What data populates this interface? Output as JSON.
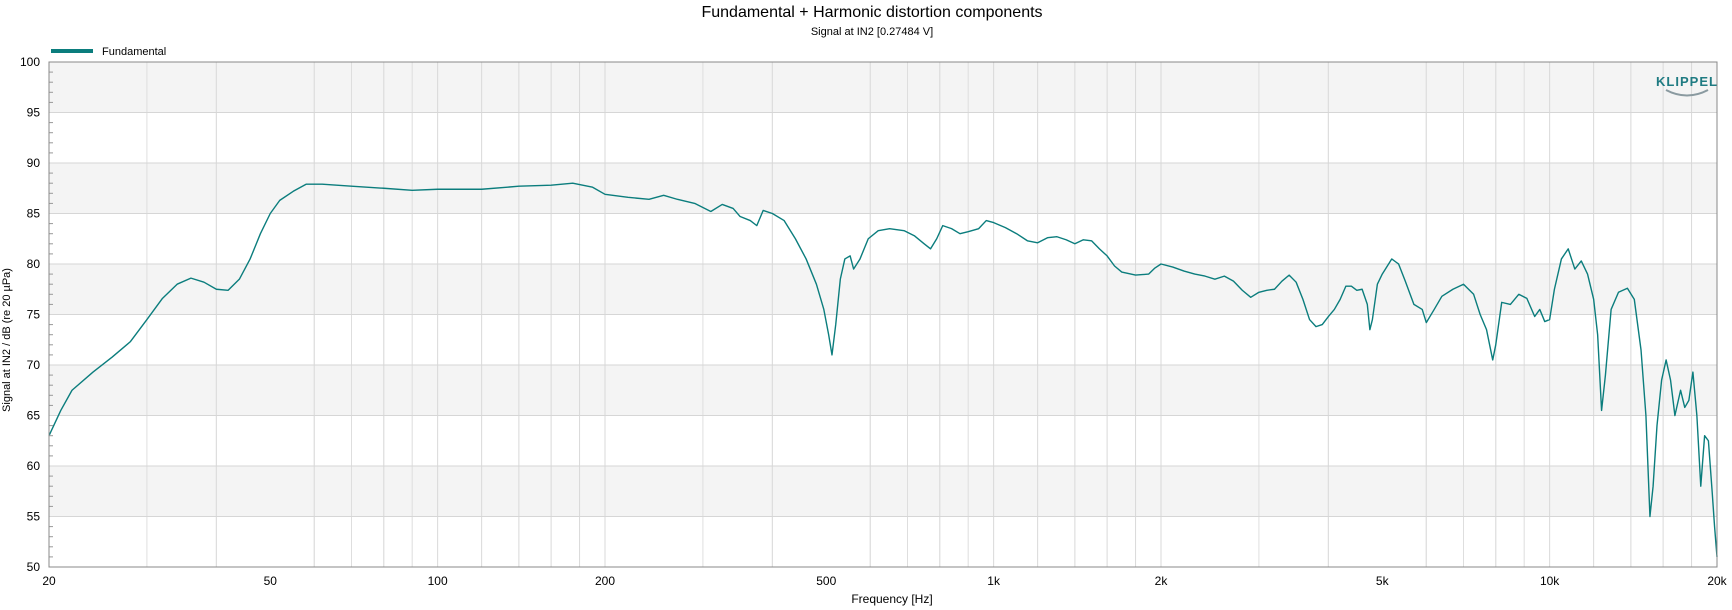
{
  "chart_data": {
    "type": "line",
    "title": "Fundamental + Harmonic distortion components",
    "subtitle": "Signal at IN2 [0.27484 V]",
    "xlabel": "Frequency [Hz]",
    "ylabel": "Signal at IN2 / dB (re 20 µPa)",
    "x_scale": "log",
    "xlim": [
      20,
      20000
    ],
    "ylim": [
      50,
      100
    ],
    "grid": true,
    "legend_position": "top-left",
    "logo_text": "KLIPPEL",
    "x_ticks": [
      {
        "value": 20,
        "label": "20"
      },
      {
        "value": 50,
        "label": "50"
      },
      {
        "value": 100,
        "label": "100"
      },
      {
        "value": 200,
        "label": "200"
      },
      {
        "value": 500,
        "label": "500"
      },
      {
        "value": 1000,
        "label": "1k"
      },
      {
        "value": 2000,
        "label": "2k"
      },
      {
        "value": 5000,
        "label": "5k"
      },
      {
        "value": 10000,
        "label": "10k"
      },
      {
        "value": 20000,
        "label": "20k"
      }
    ],
    "y_ticks": [
      {
        "value": 100,
        "label": "100"
      },
      {
        "value": 95,
        "label": "95"
      },
      {
        "value": 90,
        "label": "90"
      },
      {
        "value": 85,
        "label": "85"
      },
      {
        "value": 80,
        "label": "80"
      },
      {
        "value": 75,
        "label": "75"
      },
      {
        "value": 70,
        "label": "70"
      },
      {
        "value": 65,
        "label": "65"
      },
      {
        "value": 60,
        "label": "60"
      },
      {
        "value": 55,
        "label": "55"
      },
      {
        "value": 50,
        "label": "50"
      }
    ],
    "series": [
      {
        "name": "Fundamental",
        "color": "#0b7d7d",
        "points": [
          [
            20,
            63
          ],
          [
            21,
            65.5
          ],
          [
            22,
            67.5
          ],
          [
            24,
            69.3
          ],
          [
            26,
            70.8
          ],
          [
            28,
            72.3
          ],
          [
            30,
            74.5
          ],
          [
            32,
            76.6
          ],
          [
            34,
            78.0
          ],
          [
            36,
            78.6
          ],
          [
            38,
            78.2
          ],
          [
            40,
            77.5
          ],
          [
            42,
            77.4
          ],
          [
            44,
            78.5
          ],
          [
            46,
            80.5
          ],
          [
            48,
            83.0
          ],
          [
            50,
            85.0
          ],
          [
            52,
            86.3
          ],
          [
            55,
            87.2
          ],
          [
            58,
            87.9
          ],
          [
            62,
            87.9
          ],
          [
            70,
            87.7
          ],
          [
            80,
            87.5
          ],
          [
            90,
            87.3
          ],
          [
            100,
            87.4
          ],
          [
            120,
            87.4
          ],
          [
            140,
            87.7
          ],
          [
            160,
            87.8
          ],
          [
            175,
            88.0
          ],
          [
            190,
            87.6
          ],
          [
            200,
            86.9
          ],
          [
            220,
            86.6
          ],
          [
            240,
            86.4
          ],
          [
            255,
            86.8
          ],
          [
            270,
            86.4
          ],
          [
            290,
            86.0
          ],
          [
            310,
            85.2
          ],
          [
            325,
            85.9
          ],
          [
            340,
            85.5
          ],
          [
            350,
            84.7
          ],
          [
            365,
            84.3
          ],
          [
            375,
            83.8
          ],
          [
            385,
            85.3
          ],
          [
            400,
            85.0
          ],
          [
            420,
            84.3
          ],
          [
            440,
            82.5
          ],
          [
            460,
            80.5
          ],
          [
            480,
            78.0
          ],
          [
            495,
            75.5
          ],
          [
            505,
            73.0
          ],
          [
            512,
            71.0
          ],
          [
            520,
            74.0
          ],
          [
            530,
            78.5
          ],
          [
            540,
            80.5
          ],
          [
            552,
            80.8
          ],
          [
            560,
            79.5
          ],
          [
            575,
            80.5
          ],
          [
            595,
            82.5
          ],
          [
            620,
            83.3
          ],
          [
            650,
            83.5
          ],
          [
            690,
            83.3
          ],
          [
            720,
            82.8
          ],
          [
            750,
            82.0
          ],
          [
            770,
            81.5
          ],
          [
            790,
            82.5
          ],
          [
            810,
            83.8
          ],
          [
            840,
            83.5
          ],
          [
            870,
            83.0
          ],
          [
            900,
            83.2
          ],
          [
            940,
            83.5
          ],
          [
            970,
            84.3
          ],
          [
            1000,
            84.1
          ],
          [
            1050,
            83.6
          ],
          [
            1100,
            83.0
          ],
          [
            1150,
            82.3
          ],
          [
            1200,
            82.1
          ],
          [
            1250,
            82.6
          ],
          [
            1300,
            82.7
          ],
          [
            1350,
            82.4
          ],
          [
            1400,
            82.0
          ],
          [
            1450,
            82.4
          ],
          [
            1500,
            82.3
          ],
          [
            1550,
            81.5
          ],
          [
            1600,
            80.8
          ],
          [
            1650,
            79.8
          ],
          [
            1700,
            79.2
          ],
          [
            1800,
            78.9
          ],
          [
            1900,
            79.0
          ],
          [
            1950,
            79.6
          ],
          [
            2000,
            80.0
          ],
          [
            2100,
            79.7
          ],
          [
            2200,
            79.3
          ],
          [
            2300,
            79.0
          ],
          [
            2400,
            78.8
          ],
          [
            2500,
            78.5
          ],
          [
            2600,
            78.8
          ],
          [
            2700,
            78.3
          ],
          [
            2800,
            77.4
          ],
          [
            2900,
            76.7
          ],
          [
            3000,
            77.2
          ],
          [
            3100,
            77.4
          ],
          [
            3200,
            77.5
          ],
          [
            3300,
            78.3
          ],
          [
            3400,
            78.9
          ],
          [
            3500,
            78.2
          ],
          [
            3600,
            76.5
          ],
          [
            3700,
            74.5
          ],
          [
            3800,
            73.8
          ],
          [
            3900,
            74.0
          ],
          [
            4000,
            74.8
          ],
          [
            4100,
            75.5
          ],
          [
            4200,
            76.5
          ],
          [
            4300,
            77.8
          ],
          [
            4400,
            77.8
          ],
          [
            4500,
            77.4
          ],
          [
            4600,
            77.5
          ],
          [
            4700,
            76.0
          ],
          [
            4750,
            73.5
          ],
          [
            4800,
            74.5
          ],
          [
            4900,
            78.0
          ],
          [
            5000,
            79.0
          ],
          [
            5200,
            80.5
          ],
          [
            5350,
            80.0
          ],
          [
            5500,
            78.3
          ],
          [
            5700,
            76.0
          ],
          [
            5900,
            75.5
          ],
          [
            6000,
            74.2
          ],
          [
            6200,
            75.5
          ],
          [
            6400,
            76.8
          ],
          [
            6700,
            77.5
          ],
          [
            7000,
            78.0
          ],
          [
            7300,
            77.0
          ],
          [
            7500,
            75.0
          ],
          [
            7700,
            73.5
          ],
          [
            7900,
            70.5
          ],
          [
            8000,
            72.0
          ],
          [
            8200,
            76.2
          ],
          [
            8500,
            76.0
          ],
          [
            8800,
            77.0
          ],
          [
            9100,
            76.6
          ],
          [
            9400,
            74.8
          ],
          [
            9600,
            75.5
          ],
          [
            9800,
            74.3
          ],
          [
            10000,
            74.5
          ],
          [
            10200,
            77.5
          ],
          [
            10500,
            80.5
          ],
          [
            10800,
            81.5
          ],
          [
            11100,
            79.5
          ],
          [
            11400,
            80.3
          ],
          [
            11700,
            79.0
          ],
          [
            12000,
            76.5
          ],
          [
            12200,
            73.0
          ],
          [
            12400,
            65.5
          ],
          [
            12600,
            69.0
          ],
          [
            12900,
            75.5
          ],
          [
            13300,
            77.2
          ],
          [
            13800,
            77.6
          ],
          [
            14200,
            76.5
          ],
          [
            14600,
            71.5
          ],
          [
            14900,
            65.0
          ],
          [
            15150,
            55.0
          ],
          [
            15350,
            58.0
          ],
          [
            15600,
            64.0
          ],
          [
            15900,
            68.5
          ],
          [
            16200,
            70.5
          ],
          [
            16500,
            68.5
          ],
          [
            16800,
            65.0
          ],
          [
            17200,
            67.5
          ],
          [
            17500,
            65.8
          ],
          [
            17800,
            66.5
          ],
          [
            18100,
            69.3
          ],
          [
            18400,
            65.0
          ],
          [
            18700,
            58.0
          ],
          [
            19000,
            63.0
          ],
          [
            19300,
            62.5
          ],
          [
            19600,
            57.5
          ],
          [
            19800,
            54.0
          ],
          [
            20000,
            51.0
          ]
        ]
      }
    ]
  }
}
